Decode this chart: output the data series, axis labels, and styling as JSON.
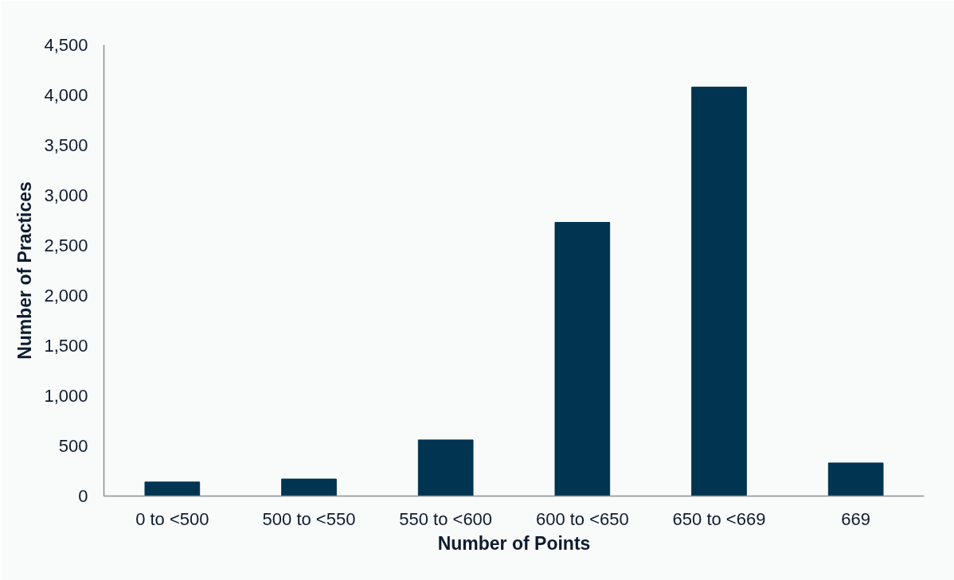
{
  "chart_data": {
    "type": "bar",
    "xlabel": "Number of Points",
    "ylabel": "Number of Practices",
    "categories": [
      "0 to <500",
      "500 to <550",
      "550 to <600",
      "600 to <650",
      "650 to <669",
      "669"
    ],
    "values": [
      140,
      170,
      560,
      2730,
      4080,
      330
    ],
    "color": "#003450",
    "ylim": [
      0,
      4500
    ],
    "yticks": [
      0,
      500,
      {
        "value": 1000,
        "label": "1,000"
      },
      {
        "value": 1500,
        "label": "1,500"
      },
      {
        "value": 2000,
        "label": "2,000"
      },
      {
        "value": 2500,
        "label": "2,500"
      },
      {
        "value": 3000,
        "label": "3,000"
      },
      {
        "value": 3500,
        "label": "3,500"
      },
      {
        "value": 4000,
        "label": "4,000"
      },
      {
        "value": 4500,
        "label": "4,500"
      }
    ]
  }
}
